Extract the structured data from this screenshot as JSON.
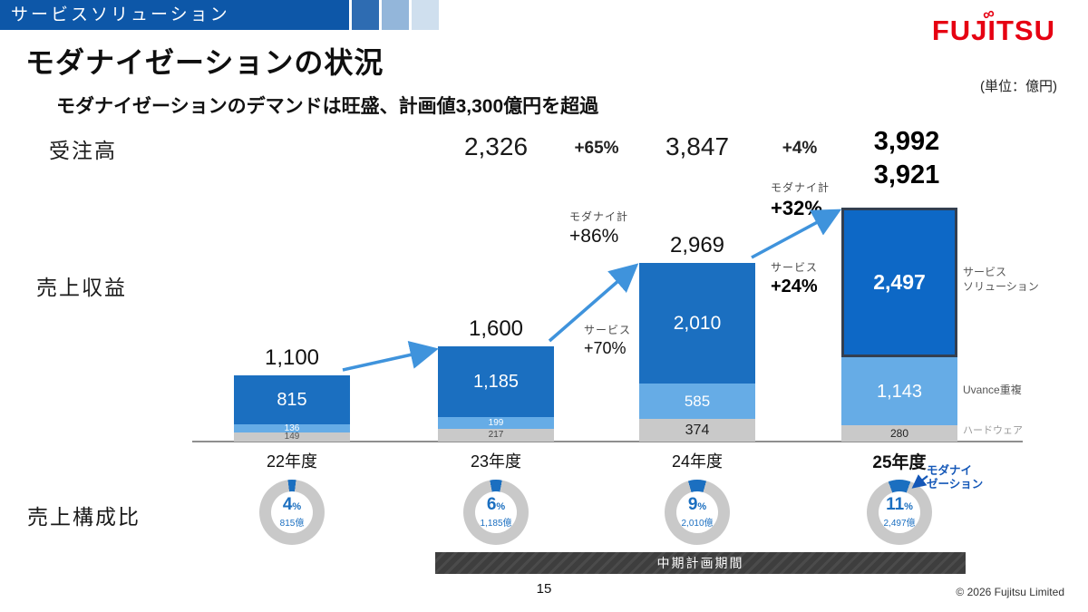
{
  "header": {
    "strip_label": "サービスソリューション",
    "logo_text": "FUJITSU",
    "unit_note": "(単位：億円)"
  },
  "title": "モダナイゼーションの状況",
  "subtitle": "モダナイゼーションのデマンドは旺盛、計画値3,300億円を超過",
  "row_labels": {
    "orders": "受注高",
    "revenue": "売上収益",
    "composition": "売上構成比"
  },
  "chart_data": {
    "type": "bar",
    "unit": "億円",
    "categories": [
      "22年度",
      "23年度",
      "24年度",
      "25年度"
    ],
    "series": [
      {
        "name": "サービスソリューション",
        "values": [
          "815",
          "1,185",
          "2,010",
          "2,497"
        ]
      },
      {
        "name": "Uvance重複",
        "values": [
          "136",
          "199",
          "585",
          "1,143"
        ]
      },
      {
        "name": "ハードウェア",
        "values": [
          "149",
          "217",
          "374",
          "280"
        ]
      }
    ],
    "revenue_totals": [
      "1,100",
      "1,600",
      "2,969",
      "3,921"
    ],
    "orders_values": [
      "2,326",
      "3,847",
      "3,992"
    ],
    "orders_growth": [
      "+65%",
      "+4%"
    ],
    "growth_annotations": [
      {
        "label": "モダナイ計",
        "value": "+86%"
      },
      {
        "label": "サービス",
        "value": "+70%"
      },
      {
        "label": "モダナイ計",
        "value": "+32%"
      },
      {
        "label": "サービス",
        "value": "+24%"
      }
    ],
    "legend": [
      "サービス\nソリューション",
      "Uvance重複",
      "ハードウェア"
    ],
    "composition": [
      {
        "pct": 4,
        "amount": "815億"
      },
      {
        "pct": 6,
        "amount": "1,185億"
      },
      {
        "pct": 9,
        "amount": "2,010億"
      },
      {
        "pct": 11,
        "amount": "2,497億"
      }
    ],
    "composition_callout": "モダナイ\nゼーション",
    "colors": {
      "service": "#1b6fc0",
      "service_highlight": "#0d68c6",
      "uvance": "#66ace6",
      "hardware": "#c9c9c9",
      "arrow": "#3f93dc",
      "donut_track": "#c9c9c9"
    }
  },
  "midterm_label": "中期計画期間",
  "footer": {
    "page_number": "15",
    "copyright": "© 2026 Fujitsu Limited"
  }
}
